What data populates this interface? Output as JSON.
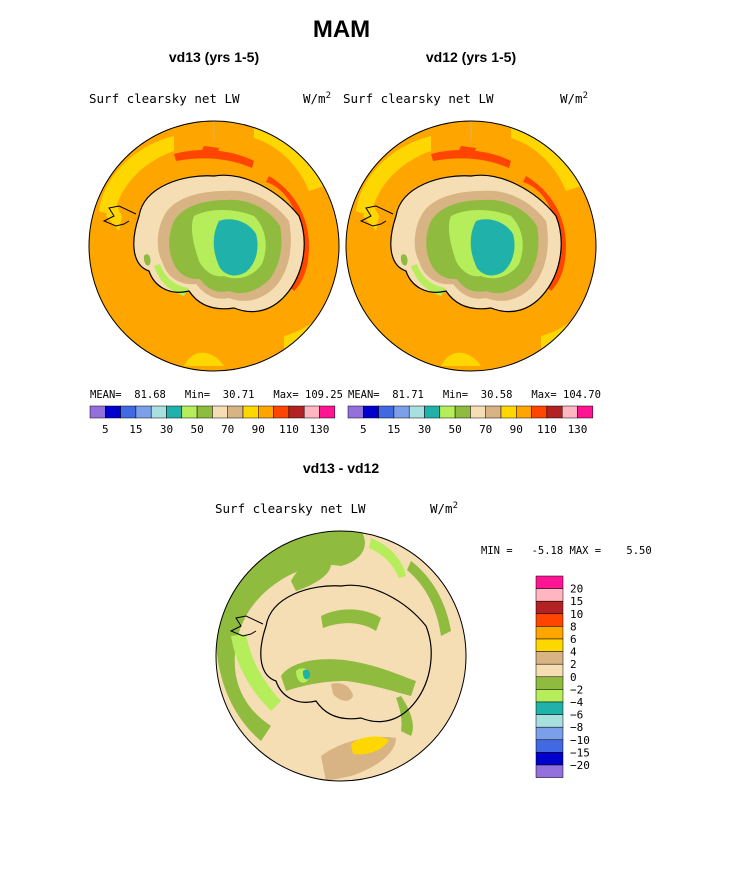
{
  "figure": {
    "title": "MAM",
    "diff_title": "vd13 - vd12"
  },
  "panels": [
    {
      "id": "vd13",
      "subtitle": "vd13 (yrs 1-5)",
      "variable": "Surf clearsky net LW",
      "units": "W/m",
      "units_sup": "2",
      "stats": {
        "mean_label": "MEAN=",
        "mean": "81.68",
        "min_label": "Min=",
        "min": "30.71",
        "max_label": "Max=",
        "max": "109.25"
      }
    },
    {
      "id": "vd12",
      "subtitle": "vd12 (yrs 1-5)",
      "variable": "Surf clearsky net LW",
      "units": "W/m",
      "units_sup": "2",
      "stats": {
        "mean_label": "MEAN=",
        "mean": "81.71",
        "min_label": "Min=",
        "min": "30.58",
        "max_label": "Max=",
        "max": "104.70"
      }
    }
  ],
  "diff_panel": {
    "variable": "Surf clearsky net LW",
    "units": "W/m",
    "units_sup": "2",
    "minmax": "MIN =   -5.18 MAX =    5.50"
  },
  "colors": {
    "abs_scale": [
      "#9370db",
      "#0000cd",
      "#4169e1",
      "#7b9fe8",
      "#a8e0e0",
      "#20b2aa",
      "#b5ee5a",
      "#8fbc3f",
      "#f5deb3",
      "#d8b384",
      "#ffd700",
      "#ffa500",
      "#ff4500",
      "#b22222",
      "#ffb6c1",
      "#ff1493"
    ],
    "diff_scale": [
      "#ff1493",
      "#ffb6c1",
      "#b22222",
      "#ff4500",
      "#ffa500",
      "#ffd700",
      "#d8b384",
      "#f5deb3",
      "#8fbc3f",
      "#b5ee5a",
      "#20b2aa",
      "#a8e0e0",
      "#7b9fe8",
      "#4169e1",
      "#0000cd",
      "#9370db"
    ],
    "ocean": "#ffa500",
    "coast": "#000000"
  },
  "chart_data": [
    {
      "type": "heatmap",
      "title": "vd13 (yrs 1-5)",
      "variable": "Surf clearsky net LW",
      "units": "W/m^2",
      "projection": "south-polar-stereographic",
      "levels": [
        5,
        10,
        15,
        20,
        30,
        40,
        50,
        60,
        70,
        80,
        90,
        100,
        110,
        120,
        130
      ],
      "tick_labels": [
        "5",
        "15",
        "30",
        "50",
        "70",
        "90",
        "110",
        "130"
      ],
      "mean": 81.68,
      "min": 30.71,
      "max": 109.25
    },
    {
      "type": "heatmap",
      "title": "vd12 (yrs 1-5)",
      "variable": "Surf clearsky net LW",
      "units": "W/m^2",
      "projection": "south-polar-stereographic",
      "levels": [
        5,
        10,
        15,
        20,
        30,
        40,
        50,
        60,
        70,
        80,
        90,
        100,
        110,
        120,
        130
      ],
      "tick_labels": [
        "5",
        "15",
        "30",
        "50",
        "70",
        "90",
        "110",
        "130"
      ],
      "mean": 81.71,
      "min": 30.58,
      "max": 104.7
    },
    {
      "type": "heatmap",
      "title": "vd13 - vd12",
      "variable": "Surf clearsky net LW",
      "units": "W/m^2",
      "projection": "south-polar-stereographic",
      "levels": [
        20,
        15,
        10,
        8,
        6,
        4,
        2,
        0,
        -2,
        -4,
        -6,
        -8,
        -10,
        -15,
        -20
      ],
      "tick_labels": [
        "20",
        "15",
        "10",
        "8",
        "6",
        "4",
        "2",
        "0",
        "−2",
        "−4",
        "−6",
        "−8",
        "−10",
        "−15",
        "−20"
      ],
      "min": -5.18,
      "max": 5.5
    }
  ]
}
